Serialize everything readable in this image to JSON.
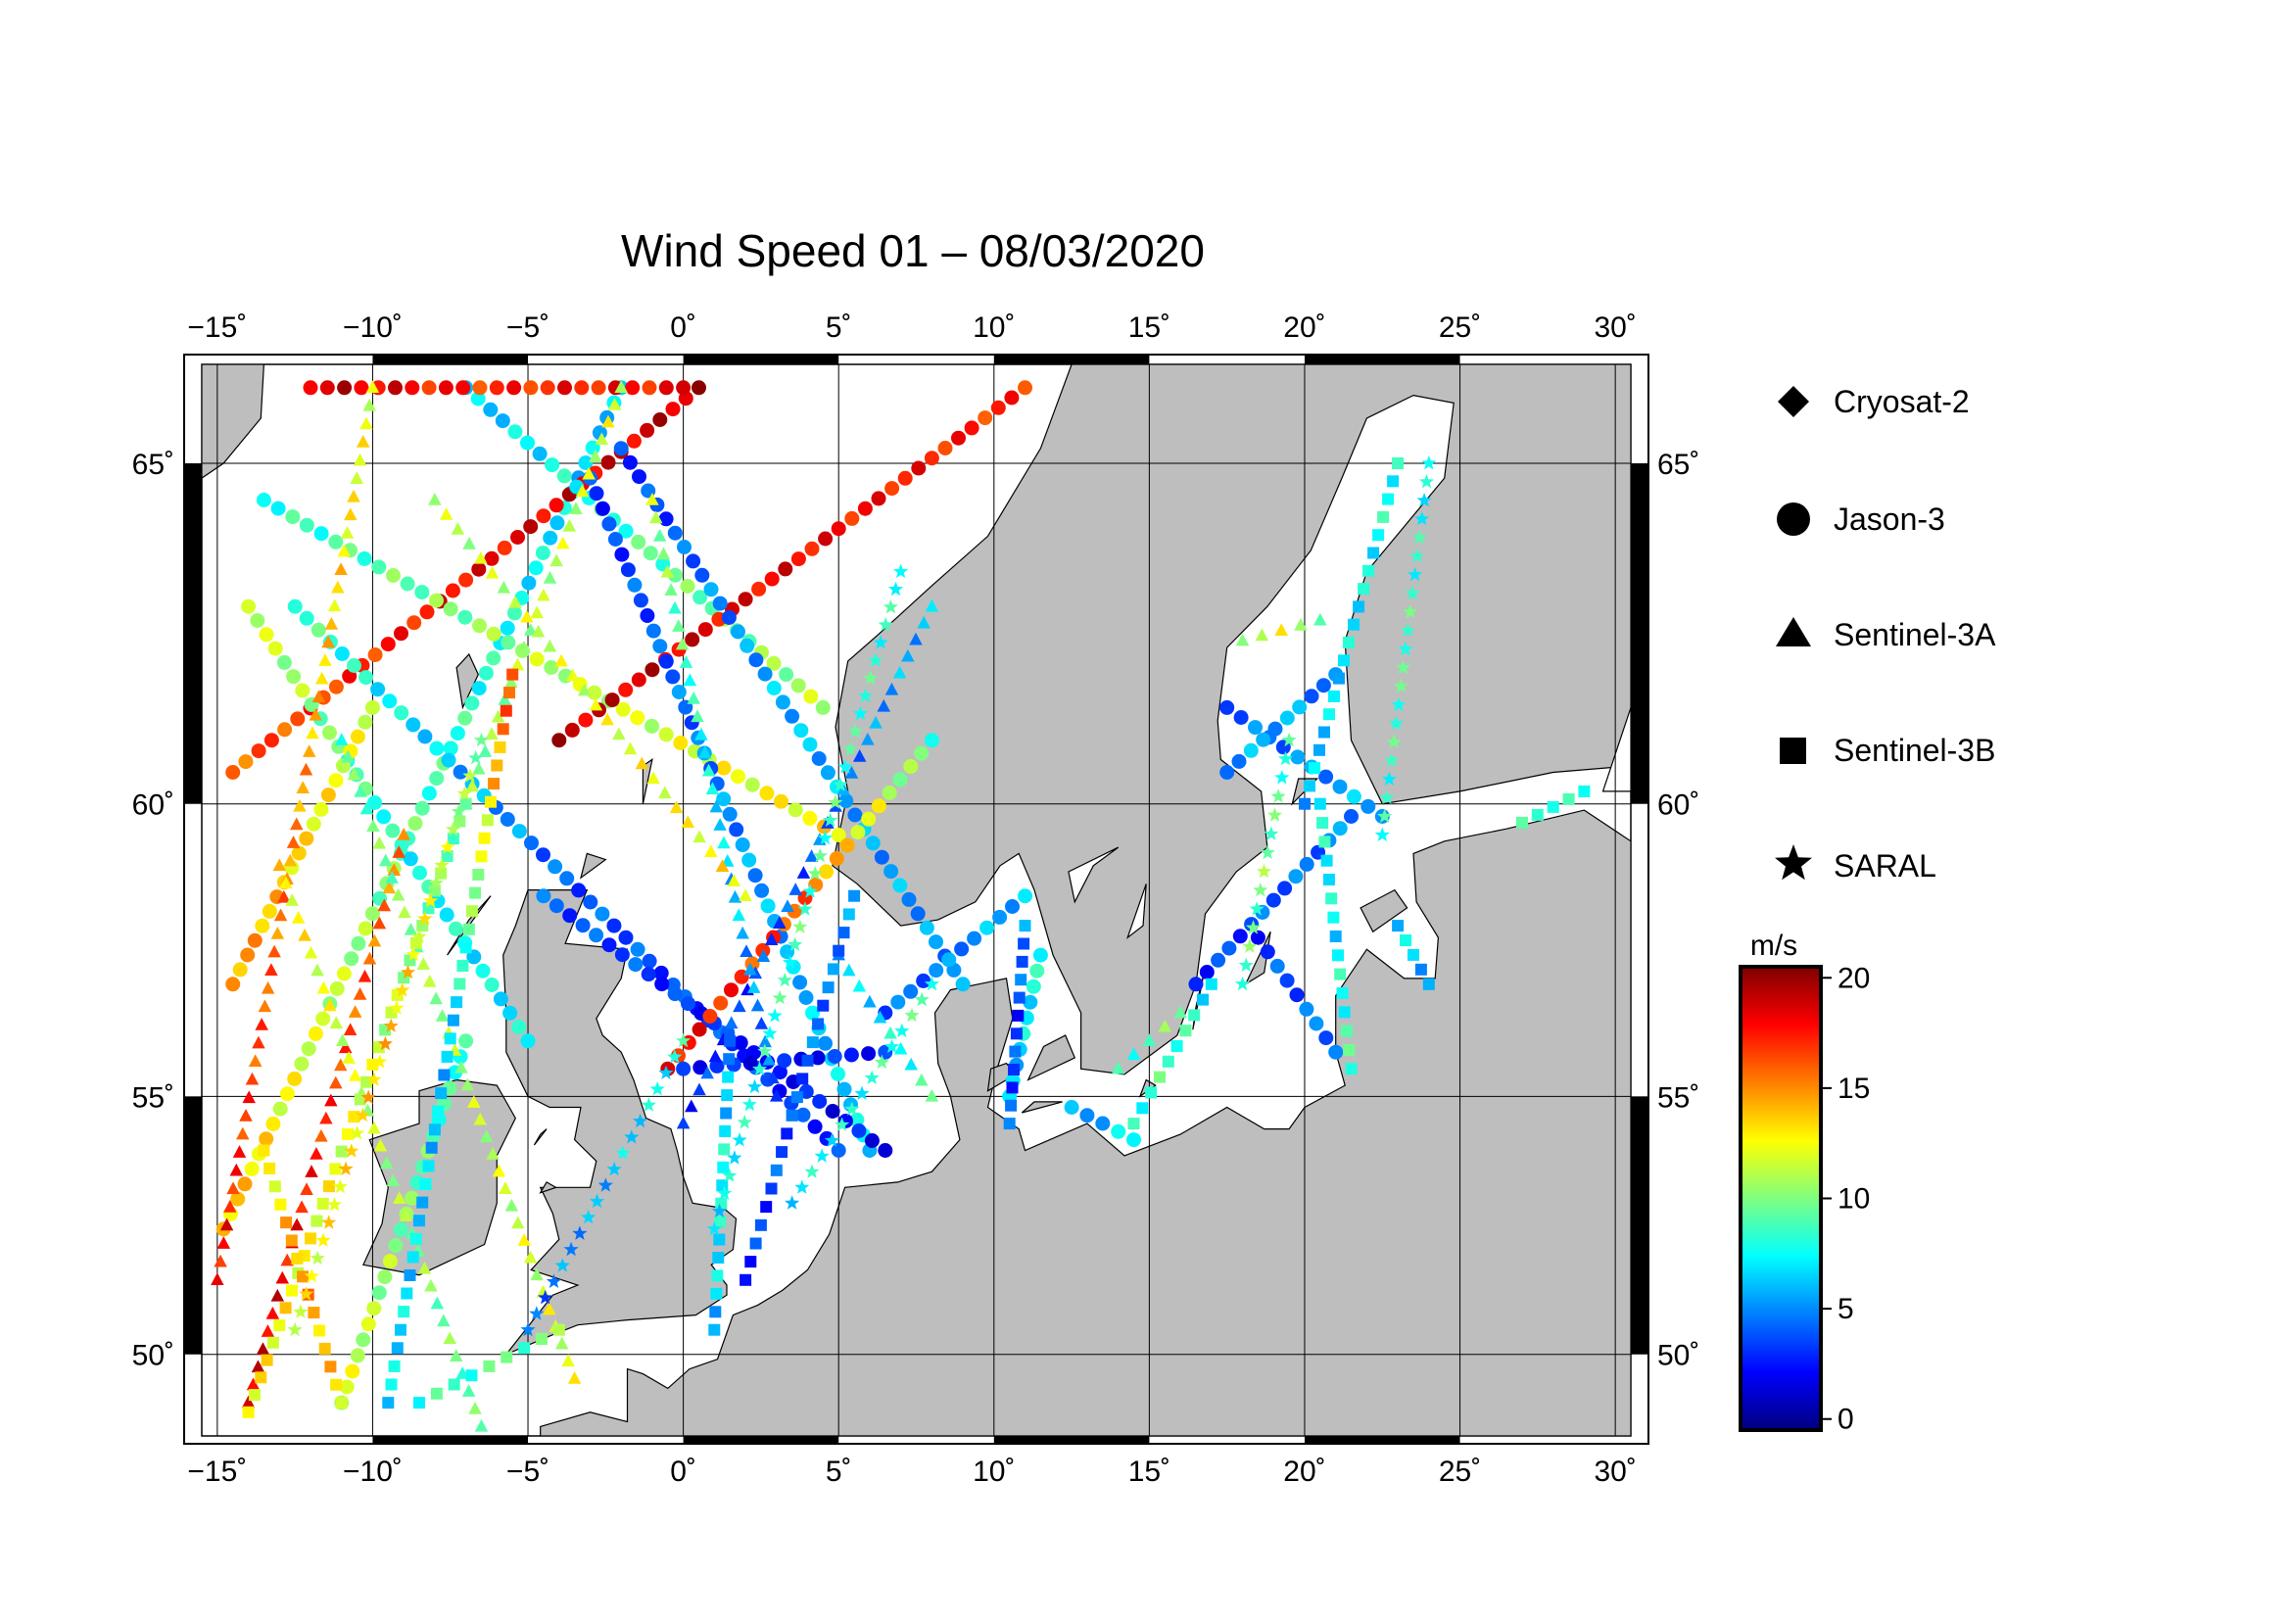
{
  "title": "Wind Speed 01 – 08/03/2020",
  "map": {
    "lon_range": [
      -15.5,
      30.5
    ],
    "lat_range": [
      48.3,
      66.3
    ],
    "lon_ticks": [
      "−15˚",
      "−10˚",
      "−5˚",
      "0˚",
      "5˚",
      "10˚",
      "15˚",
      "20˚",
      "25˚",
      "30˚"
    ],
    "lon_tick_values": [
      -15,
      -10,
      -5,
      0,
      5,
      10,
      15,
      20,
      25,
      30
    ],
    "lat_ticks": [
      "50˚",
      "55˚",
      "60˚",
      "65˚"
    ],
    "lat_tick_values": [
      50,
      55,
      60,
      65
    ],
    "land_color": "#bebebe",
    "sea_color": "#ffffff",
    "grid": true
  },
  "legend": {
    "items": [
      {
        "label": "Cryosat-2",
        "symbol": "diamond"
      },
      {
        "label": "Jason-3",
        "symbol": "circle"
      },
      {
        "label": "Sentinel-3A",
        "symbol": "triangle"
      },
      {
        "label": "Sentinel-3B",
        "symbol": "square"
      },
      {
        "label": "SARAL",
        "symbol": "star"
      }
    ]
  },
  "colorbar": {
    "unit": "m/s",
    "ticks": [
      "0",
      "5",
      "10",
      "15",
      "20"
    ],
    "tick_values": [
      0,
      5,
      10,
      15,
      20
    ],
    "range": [
      -0.5,
      20.5
    ],
    "colors": [
      "#00007f",
      "#0000ff",
      "#007fff",
      "#00ffff",
      "#7fff7f",
      "#ffff00",
      "#ff7f00",
      "#ff0000",
      "#7f0000"
    ]
  },
  "chart_data": {
    "type": "scatter",
    "x_axis": "longitude",
    "y_axis": "latitude",
    "value": "wind speed (m/s)",
    "tracks": [
      {
        "satellite": "Jason-3",
        "from": [
          -14.8,
          52.5
        ],
        "to": [
          -2.0,
          66.0
        ],
        "v": [
          14,
          9,
          6
        ]
      },
      {
        "satellite": "Jason-3",
        "from": [
          -14.5,
          60.5
        ],
        "to": [
          0.5,
          66.0
        ],
        "v": [
          16,
          18,
          19
        ]
      },
      {
        "satellite": "Jason-3",
        "from": [
          -13.5,
          64.5
        ],
        "to": [
          5.0,
          59.5
        ],
        "v": [
          8,
          11,
          13
        ]
      },
      {
        "satellite": "Jason-3",
        "from": [
          -12.5,
          63.0
        ],
        "to": [
          5.0,
          54.0
        ],
        "v": [
          9,
          4,
          3
        ]
      },
      {
        "satellite": "Jason-3",
        "from": [
          -14.0,
          63.0
        ],
        "to": [
          -5.0,
          56.0
        ],
        "v": [
          12,
          8,
          7
        ]
      },
      {
        "satellite": "Jason-3",
        "from": [
          -7.0,
          66.0
        ],
        "to": [
          4.5,
          61.5
        ],
        "v": [
          6,
          9,
          11
        ]
      },
      {
        "satellite": "Jason-3",
        "from": [
          -4.0,
          61.0
        ],
        "to": [
          11.0,
          66.0
        ],
        "v": [
          19,
          18,
          17
        ]
      },
      {
        "satellite": "Jason-3",
        "from": [
          -11.0,
          49.0
        ],
        "to": [
          -7.0,
          56.0
        ],
        "v": [
          12,
          10,
          8
        ]
      },
      {
        "satellite": "Jason-3",
        "from": [
          -14.5,
          57.0
        ],
        "to": [
          -10.0,
          61.5
        ],
        "v": [
          15,
          13,
          12
        ]
      },
      {
        "satellite": "Jason-3",
        "from": [
          -3.0,
          64.8
        ],
        "to": [
          6.0,
          54.0
        ],
        "v": [
          3,
          5,
          7
        ]
      },
      {
        "satellite": "Jason-3",
        "from": [
          -12.0,
          66.0
        ],
        "to": [
          0.0,
          66.0
        ],
        "v": [
          19,
          17,
          18
        ]
      },
      {
        "satellite": "Jason-3",
        "from": [
          -2.0,
          65.2
        ],
        "to": [
          9.0,
          57.0
        ],
        "v": [
          3,
          6,
          5
        ]
      },
      {
        "satellite": "Jason-3",
        "from": [
          -4.5,
          58.5
        ],
        "to": [
          6.5,
          54.0
        ],
        "v": [
          4,
          3,
          2
        ]
      },
      {
        "satellite": "Jason-3",
        "from": [
          -0.5,
          55.5
        ],
        "to": [
          8.0,
          61.0
        ],
        "v": [
          18,
          16,
          9
        ]
      },
      {
        "satellite": "Jason-3",
        "from": [
          0.0,
          55.5
        ],
        "to": [
          6.5,
          55.8
        ],
        "v": [
          3,
          2,
          3
        ]
      },
      {
        "satellite": "Jason-3",
        "from": [
          6.5,
          56.5
        ],
        "to": [
          11.0,
          58.5
        ],
        "v": [
          4,
          5,
          6
        ]
      },
      {
        "satellite": "Jason-3",
        "from": [
          17.5,
          61.5
        ],
        "to": [
          22.5,
          59.8
        ],
        "v": [
          4,
          5,
          6
        ]
      },
      {
        "satellite": "Jason-3",
        "from": [
          16.5,
          57.0
        ],
        "to": [
          21.5,
          59.8
        ],
        "v": [
          3,
          4,
          5
        ]
      },
      {
        "satellite": "Jason-3",
        "from": [
          18.5,
          57.8
        ],
        "to": [
          21.0,
          55.8
        ],
        "v": [
          3,
          4,
          5
        ]
      },
      {
        "satellite": "Jason-3",
        "from": [
          17.5,
          60.5
        ],
        "to": [
          21.0,
          62.0
        ],
        "v": [
          5,
          6,
          4
        ]
      },
      {
        "satellite": "Jason-3",
        "from": [
          10.5,
          55.0
        ],
        "to": [
          11.5,
          57.5
        ],
        "v": [
          6,
          7,
          8
        ]
      },
      {
        "satellite": "Jason-3",
        "from": [
          12.5,
          54.8
        ],
        "to": [
          14.5,
          54.2
        ],
        "v": [
          5,
          6,
          7
        ]
      },
      {
        "satellite": "Sentinel-3A",
        "from": [
          -15.0,
          51.5
        ],
        "to": [
          -10.0,
          66.0
        ],
        "v": [
          18,
          15,
          12
        ]
      },
      {
        "satellite": "Sentinel-3A",
        "from": [
          -14.0,
          49.0
        ],
        "to": [
          -9.0,
          59.5
        ],
        "v": [
          19,
          17,
          15
        ]
      },
      {
        "satellite": "Sentinel-3A",
        "from": [
          -6.5,
          48.5
        ],
        "to": [
          -13.0,
          59.0
        ],
        "v": [
          9,
          11,
          13
        ]
      },
      {
        "satellite": "Sentinel-3A",
        "from": [
          -3.5,
          49.5
        ],
        "to": [
          -11.0,
          61.0
        ],
        "v": [
          12,
          11,
          9
        ]
      },
      {
        "satellite": "Sentinel-3A",
        "from": [
          -7.0,
          60.0
        ],
        "to": [
          -2.0,
          66.0
        ],
        "v": [
          10,
          11,
          12
        ]
      },
      {
        "satellite": "Sentinel-3A",
        "from": [
          0.0,
          54.5
        ],
        "to": [
          8.0,
          63.0
        ],
        "v": [
          3,
          4,
          6
        ]
      },
      {
        "satellite": "Sentinel-3A",
        "from": [
          3.0,
          55.0
        ],
        "to": [
          -1.0,
          64.5
        ],
        "v": [
          4,
          7,
          11
        ]
      },
      {
        "satellite": "Sentinel-3A",
        "from": [
          5.0,
          57.5
        ],
        "to": [
          8.0,
          55.0
        ],
        "v": [
          6,
          7,
          9
        ]
      },
      {
        "satellite": "Sentinel-3A",
        "from": [
          -8.0,
          64.5
        ],
        "to": [
          2.0,
          58.5
        ],
        "v": [
          11,
          12,
          13
        ]
      },
      {
        "satellite": "Sentinel-3A",
        "from": [
          18.0,
          62.5
        ],
        "to": [
          20.5,
          62.8
        ],
        "v": [
          11,
          12,
          10
        ]
      },
      {
        "satellite": "Sentinel-3A",
        "from": [
          14.0,
          55.5
        ],
        "to": [
          16.0,
          56.5
        ],
        "v": [
          8,
          9,
          10
        ]
      },
      {
        "satellite": "Sentinel-3B",
        "from": [
          -14.0,
          48.8
        ],
        "to": [
          -7.0,
          60.0
        ],
        "v": [
          13,
          12,
          9
        ]
      },
      {
        "satellite": "Sentinel-3B",
        "from": [
          -9.5,
          49.0
        ],
        "to": [
          -5.5,
          62.0
        ],
        "v": [
          7,
          6,
          17
        ]
      },
      {
        "satellite": "Sentinel-3B",
        "from": [
          -11.0,
          49.0
        ],
        "to": [
          -13.5,
          54.0
        ],
        "v": [
          13,
          15,
          12
        ]
      },
      {
        "satellite": "Sentinel-3B",
        "from": [
          -8.5,
          49.0
        ],
        "to": [
          -4.0,
          50.5
        ],
        "v": [
          8,
          9,
          10
        ]
      },
      {
        "satellite": "Sentinel-3B",
        "from": [
          2.0,
          51.5
        ],
        "to": [
          5.5,
          58.5
        ],
        "v": [
          3,
          4,
          5
        ]
      },
      {
        "satellite": "Sentinel-3B",
        "from": [
          1.0,
          50.5
        ],
        "to": [
          1.5,
          56.0
        ],
        "v": [
          6,
          8,
          5
        ]
      },
      {
        "satellite": "Sentinel-3B",
        "from": [
          10.5,
          54.5
        ],
        "to": [
          11.0,
          58.0
        ],
        "v": [
          4,
          3,
          5
        ]
      },
      {
        "satellite": "Sentinel-3B",
        "from": [
          14.5,
          54.5
        ],
        "to": [
          17.0,
          57.0
        ],
        "v": [
          8,
          9,
          7
        ]
      },
      {
        "satellite": "Sentinel-3B",
        "from": [
          20.0,
          60.0
        ],
        "to": [
          23.0,
          65.0
        ],
        "v": [
          6,
          7,
          8
        ]
      },
      {
        "satellite": "Sentinel-3B",
        "from": [
          20.5,
          60.0
        ],
        "to": [
          21.5,
          55.5
        ],
        "v": [
          8,
          7,
          9
        ]
      },
      {
        "satellite": "Sentinel-3B",
        "from": [
          23.0,
          58.0
        ],
        "to": [
          24.0,
          57.0
        ],
        "v": [
          6,
          7,
          5
        ]
      },
      {
        "satellite": "Sentinel-3B",
        "from": [
          27.0,
          59.7
        ],
        "to": [
          29.0,
          60.2
        ],
        "v": [
          8,
          9,
          7
        ]
      },
      {
        "satellite": "SARAL",
        "from": [
          -12.5,
          50.5
        ],
        "to": [
          -6.5,
          61.0
        ],
        "v": [
          12,
          14,
          10
        ]
      },
      {
        "satellite": "SARAL",
        "from": [
          -5.0,
          50.5
        ],
        "to": [
          0.0,
          56.0
        ],
        "v": [
          4,
          6,
          8
        ]
      },
      {
        "satellite": "SARAL",
        "from": [
          1.0,
          52.5
        ],
        "to": [
          7.0,
          63.5
        ],
        "v": [
          7,
          9,
          8
        ]
      },
      {
        "satellite": "SARAL",
        "from": [
          3.5,
          53.0
        ],
        "to": [
          8.0,
          57.0
        ],
        "v": [
          7,
          8,
          9
        ]
      },
      {
        "satellite": "SARAL",
        "from": [
          18.0,
          57.0
        ],
        "to": [
          19.5,
          61.0
        ],
        "v": [
          9,
          10,
          8
        ]
      },
      {
        "satellite": "SARAL",
        "from": [
          22.5,
          59.5
        ],
        "to": [
          24.0,
          65.0
        ],
        "v": [
          8,
          9,
          7
        ]
      }
    ]
  }
}
